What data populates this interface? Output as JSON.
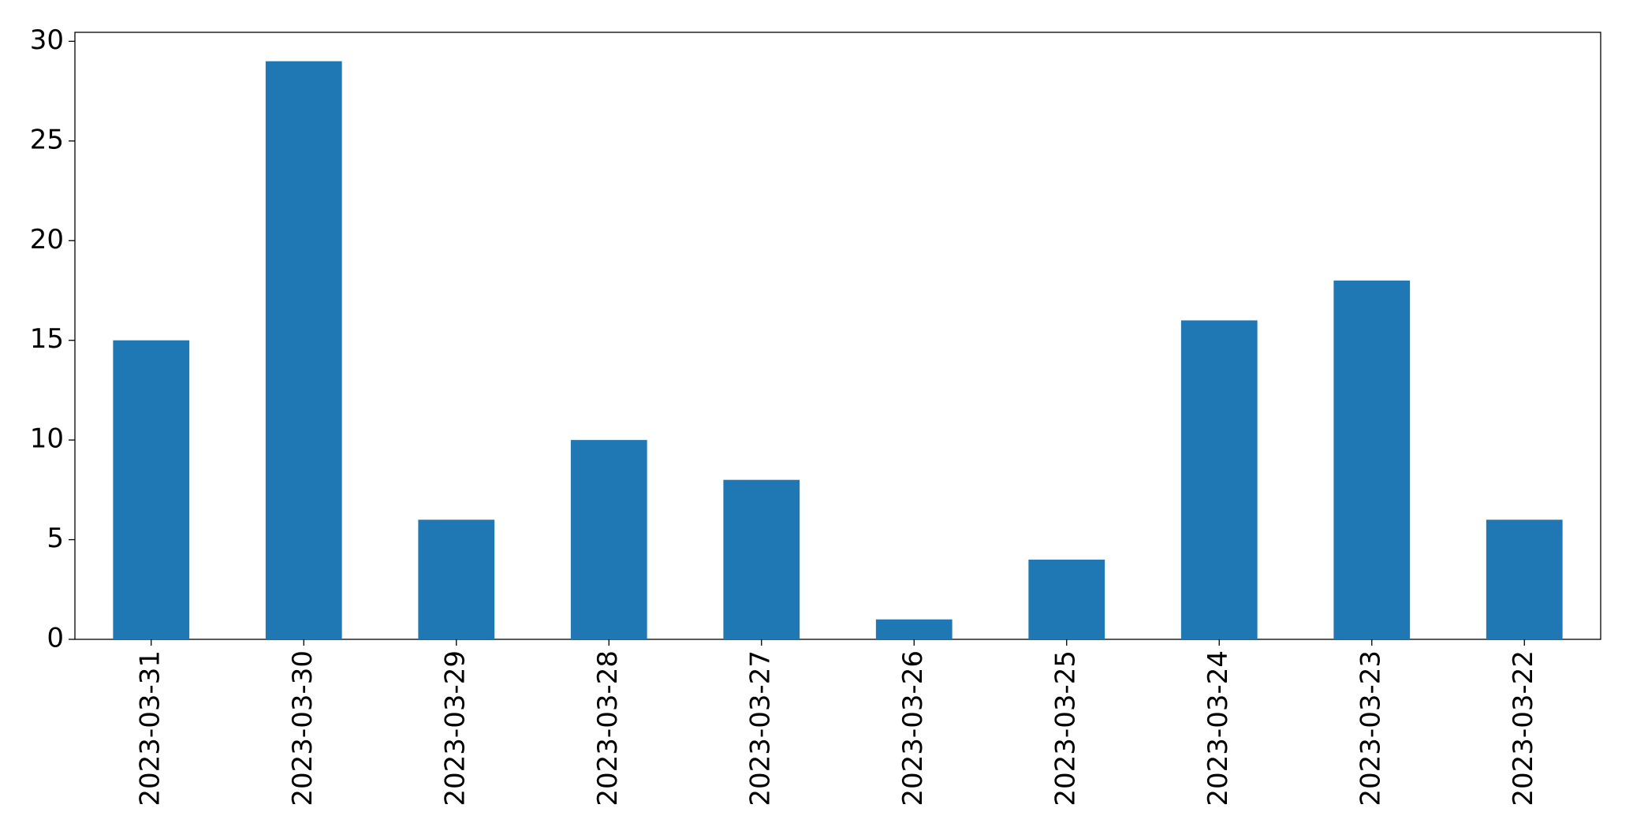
{
  "chart_data": {
    "type": "bar",
    "categories": [
      "2023-03-31",
      "2023-03-30",
      "2023-03-29",
      "2023-03-28",
      "2023-03-27",
      "2023-03-26",
      "2023-03-25",
      "2023-03-24",
      "2023-03-23",
      "2023-03-22"
    ],
    "values": [
      15,
      29,
      6,
      10,
      8,
      1,
      4,
      16,
      18,
      6
    ],
    "color": "#1f77b4",
    "ylim": [
      0,
      30.45
    ],
    "yticks": [
      0,
      5,
      10,
      15,
      20,
      25,
      30
    ],
    "grid": false
  }
}
